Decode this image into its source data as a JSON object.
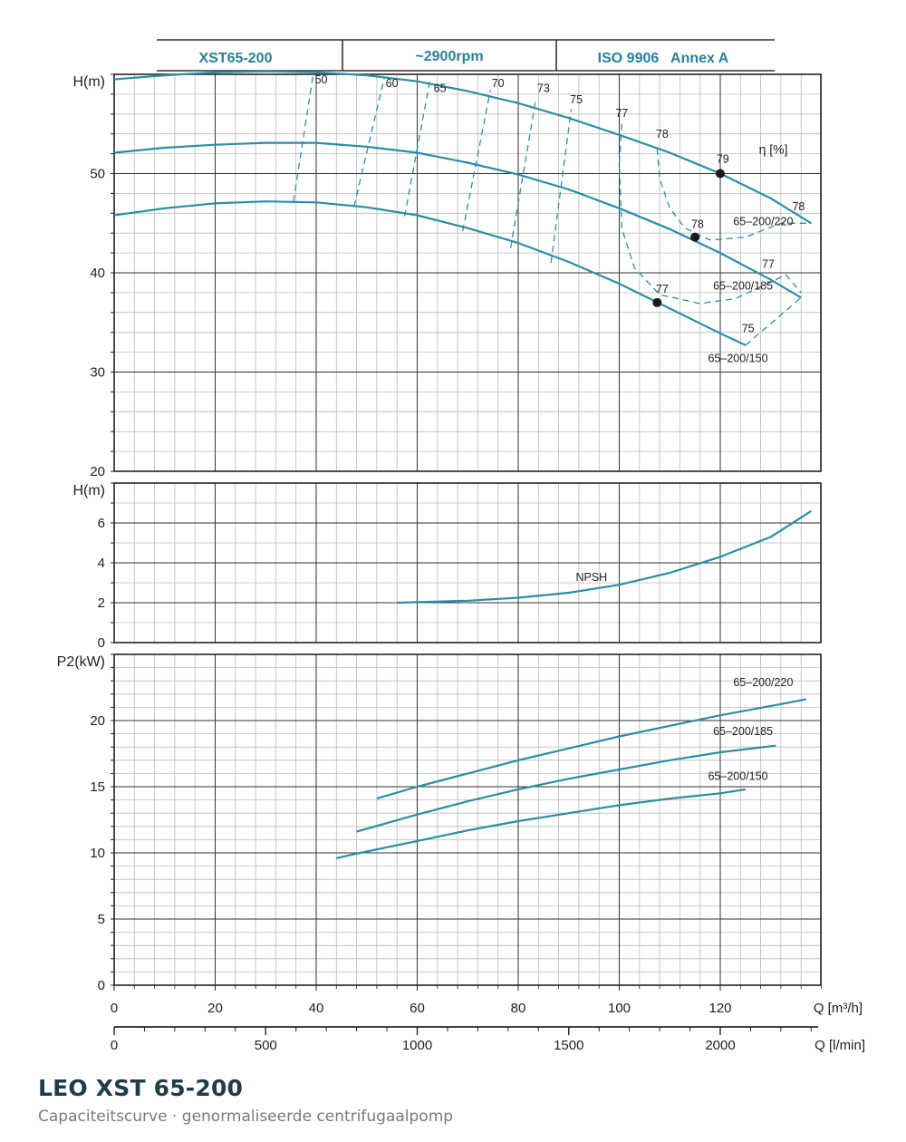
{
  "header": {
    "model": "XST65-200",
    "speed": "~2900rpm",
    "standard": "ISO 9906   Annex A"
  },
  "footer": {
    "title": "LEO XST 65-200",
    "subtitle": "Capaciteitscurve  ·  genormaliseerde centrifugaalpomp"
  },
  "colors": {
    "curve": "#2a8ea6",
    "grid_major": "#333333",
    "grid_minor": "#bbbbbb",
    "header_text": "#2a7f9a",
    "point": "#1a1a1a"
  },
  "chart_data": [
    {
      "type": "line",
      "panel": "head",
      "ylabel": "H(m)",
      "ylim": [
        20,
        60
      ],
      "xlim": [
        0,
        140
      ],
      "yticks": [
        20,
        30,
        40,
        50
      ],
      "grid": true,
      "series": [
        {
          "name": "65–200/220",
          "x": [
            0,
            10,
            20,
            30,
            40,
            50,
            60,
            70,
            80,
            90,
            100,
            110,
            120,
            130,
            138
          ],
          "y": [
            59.5,
            59.9,
            60.2,
            60.3,
            60.2,
            59.9,
            59.3,
            58.3,
            57.1,
            55.6,
            53.9,
            52.1,
            50.0,
            47.5,
            45.0
          ]
        },
        {
          "name": "65–200/185",
          "x": [
            0,
            10,
            20,
            30,
            40,
            50,
            60,
            70,
            80,
            90,
            100,
            110,
            120,
            130,
            136
          ],
          "y": [
            52.1,
            52.6,
            52.9,
            53.1,
            53.1,
            52.7,
            52.1,
            51.1,
            49.9,
            48.4,
            46.5,
            44.4,
            42.0,
            39.3,
            37.5
          ]
        },
        {
          "name": "65–200/150",
          "x": [
            0,
            10,
            20,
            30,
            40,
            50,
            60,
            70,
            80,
            90,
            100,
            110,
            120,
            125
          ],
          "y": [
            45.8,
            46.5,
            47.0,
            47.2,
            47.1,
            46.6,
            45.8,
            44.5,
            43.0,
            41.1,
            38.9,
            36.4,
            33.9,
            32.7
          ]
        }
      ],
      "efficiency_lines": [
        {
          "label": "50",
          "x": [
            35.5,
            39.5
          ],
          "y": [
            47.2,
            60.3
          ]
        },
        {
          "label": "60",
          "x": [
            47.5,
            53.5
          ],
          "y": [
            46.7,
            59.7
          ]
        },
        {
          "label": "65",
          "x": [
            57.5,
            62.5
          ],
          "y": [
            45.7,
            59.3
          ]
        },
        {
          "label": "70",
          "x": [
            69.0,
            74.5
          ],
          "y": [
            44.2,
            58.4
          ]
        },
        {
          "label": "73",
          "x": [
            78.5,
            83.5
          ],
          "y": [
            42.5,
            57.5
          ]
        },
        {
          "label": "75",
          "x": [
            86.5,
            90.5
          ],
          "y": [
            41.0,
            56.5
          ]
        },
        {
          "label": "77",
          "x": [
            100.5,
            100,
            100.5,
            103,
            108,
            116,
            123,
            133,
            136
          ],
          "y": [
            55.0,
            51.0,
            44.5,
            40.5,
            37.8,
            36.9,
            37.4,
            39.8,
            38.0
          ]
        },
        {
          "label": "78",
          "x": [
            107.5,
            108,
            110,
            113,
            118,
            125,
            132,
            138
          ],
          "y": [
            52.5,
            49.5,
            46.5,
            44.5,
            43.3,
            43.6,
            45.0,
            45.0
          ]
        },
        {
          "label": "75",
          "x": [
            125,
            136
          ],
          "y": [
            32.7,
            37.5
          ]
        }
      ],
      "efficiency_labels": [
        {
          "text": "50",
          "x": 41.0,
          "y": 59.1
        },
        {
          "text": "60",
          "x": 55.0,
          "y": 58.7
        },
        {
          "text": "65",
          "x": 64.5,
          "y": 58.2
        },
        {
          "text": "70",
          "x": 76.0,
          "y": 58.7
        },
        {
          "text": "73",
          "x": 85.0,
          "y": 58.2
        },
        {
          "text": "75",
          "x": 91.5,
          "y": 57.1
        },
        {
          "text": "77",
          "x": 100.5,
          "y": 55.7
        },
        {
          "text": "78",
          "x": 108.5,
          "y": 53.6
        },
        {
          "text": "79",
          "x": 120.5,
          "y": 51.1
        },
        {
          "text": "78",
          "x": 135.5,
          "y": 46.3
        },
        {
          "text": "78",
          "x": 115.5,
          "y": 44.5
        },
        {
          "text": "77",
          "x": 129.5,
          "y": 40.5
        },
        {
          "text": "77",
          "x": 108.5,
          "y": 38.0
        },
        {
          "text": "75",
          "x": 125.5,
          "y": 34.0
        }
      ],
      "unit_label": {
        "text": "η [%]",
        "x": 130.5,
        "y": 52.0
      },
      "points": [
        {
          "x": 120,
          "y": 50.0,
          "label": "79"
        },
        {
          "x": 115,
          "y": 43.6,
          "label": "78"
        },
        {
          "x": 107.5,
          "y": 37.0,
          "label": "77"
        }
      ],
      "curve_labels": [
        {
          "text": "65–200/220",
          "x": 128.5,
          "y": 44.8
        },
        {
          "text": "65–200/185",
          "x": 124.5,
          "y": 38.3
        },
        {
          "text": "65–200/150",
          "x": 123.5,
          "y": 31.0
        }
      ]
    },
    {
      "type": "line",
      "panel": "npsh",
      "ylabel": "H(m)",
      "ylim": [
        0,
        8
      ],
      "xlim": [
        0,
        140
      ],
      "yticks": [
        0,
        2,
        4,
        6
      ],
      "grid": true,
      "series": [
        {
          "name": "NPSH",
          "x": [
            56,
            70,
            80,
            90,
            100,
            110,
            120,
            130,
            138
          ],
          "y": [
            2.0,
            2.1,
            2.25,
            2.5,
            2.9,
            3.5,
            4.3,
            5.3,
            6.6
          ]
        }
      ],
      "curve_labels": [
        {
          "text": "NPSH",
          "x": 94.5,
          "y": 3.1
        }
      ]
    },
    {
      "type": "line",
      "panel": "power",
      "ylabel": "P2(kW)",
      "ylim": [
        0,
        25
      ],
      "xlim": [
        0,
        140
      ],
      "yticks": [
        0,
        5,
        10,
        15,
        20
      ],
      "grid": true,
      "series": [
        {
          "name": "65–200/220",
          "x": [
            52,
            60,
            70,
            80,
            90,
            100,
            110,
            120,
            130,
            137
          ],
          "y": [
            14.1,
            15.0,
            16.0,
            17.0,
            17.9,
            18.8,
            19.6,
            20.4,
            21.1,
            21.6
          ]
        },
        {
          "name": "65–200/185",
          "x": [
            48,
            60,
            70,
            80,
            90,
            100,
            110,
            120,
            131
          ],
          "y": [
            11.6,
            12.9,
            13.9,
            14.8,
            15.6,
            16.3,
            17.0,
            17.6,
            18.1
          ]
        },
        {
          "name": "65–200/150",
          "x": [
            44,
            50,
            60,
            70,
            80,
            90,
            100,
            110,
            120,
            125
          ],
          "y": [
            9.6,
            10.1,
            10.9,
            11.7,
            12.4,
            13.0,
            13.6,
            14.1,
            14.5,
            14.8
          ]
        }
      ],
      "curve_labels": [
        {
          "text": "65–200/220",
          "x": 128.5,
          "y": 22.6
        },
        {
          "text": "65–200/185",
          "x": 124.5,
          "y": 18.9
        },
        {
          "text": "65–200/150",
          "x": 123.5,
          "y": 15.5
        }
      ]
    }
  ],
  "x_axis_m3h": {
    "label": "Q [m³/h]",
    "ticks": [
      0,
      20,
      40,
      60,
      80,
      100,
      120
    ]
  },
  "x_axis_lmin": {
    "label": "Q [l/min]",
    "ticks": [
      0,
      500,
      1000,
      1500,
      2000
    ]
  }
}
